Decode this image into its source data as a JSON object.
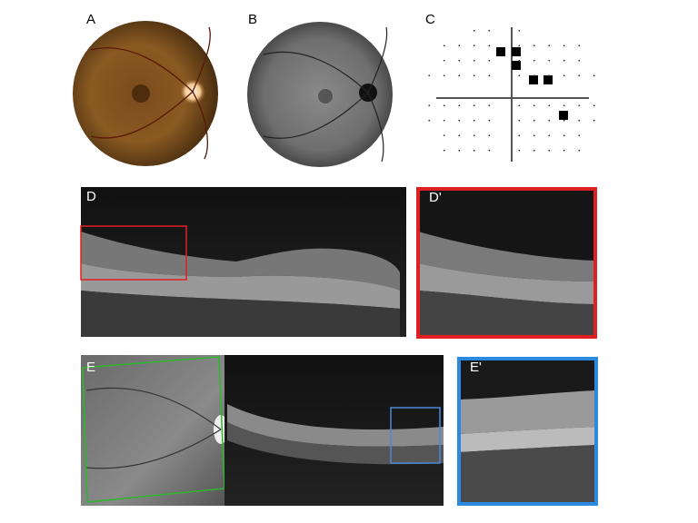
{
  "panels": [
    {
      "label": "A"
    },
    {
      "label": "B"
    },
    {
      "label": "C"
    },
    {
      "label": "D"
    },
    {
      "label": "D'"
    },
    {
      "label": "E"
    },
    {
      "label": "E'"
    }
  ]
}
